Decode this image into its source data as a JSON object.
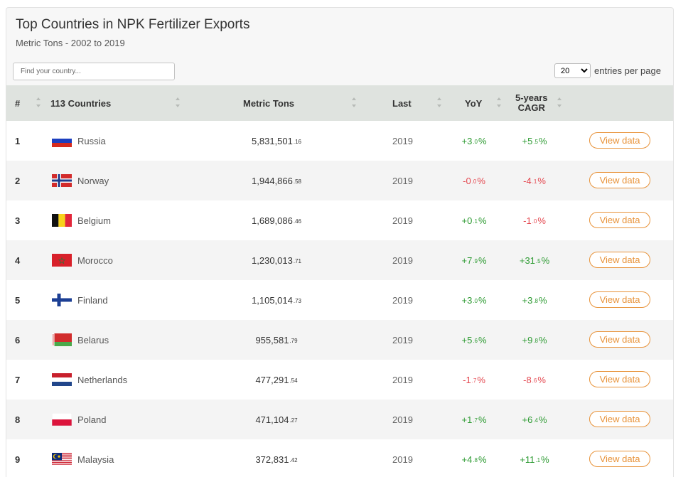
{
  "header": {
    "title": "Top Countries in NPK Fertilizer Exports",
    "subtitle": "Metric Tons - 2002 to 2019"
  },
  "search": {
    "placeholder": "Find your country..."
  },
  "pagination": {
    "per_page_value": "20",
    "per_page_label": "entries per page"
  },
  "table": {
    "columns": {
      "rank": "#",
      "country": "113 Countries",
      "value": "Metric Tons",
      "last": "Last",
      "yoy": "YoY",
      "cagr_line1": "5-years",
      "cagr_line2": "CAGR"
    },
    "button_label": "View data",
    "rows": [
      {
        "rank": "1",
        "country": "Russia",
        "flag": "russia-flag",
        "value_int": "5,831,501",
        "value_dec": ".16",
        "last": "2019",
        "yoy_sign": "+",
        "yoy_int": "3",
        "yoy_dec": ".0",
        "yoy_dir": "pos",
        "cagr_sign": "+",
        "cagr_int": "5",
        "cagr_dec": ".5",
        "cagr_dir": "pos"
      },
      {
        "rank": "2",
        "country": "Norway",
        "flag": "norway-flag",
        "value_int": "1,944,866",
        "value_dec": ".58",
        "last": "2019",
        "yoy_sign": "-",
        "yoy_int": "0",
        "yoy_dec": ".0",
        "yoy_dir": "neg",
        "cagr_sign": "-",
        "cagr_int": "4",
        "cagr_dec": ".1",
        "cagr_dir": "neg"
      },
      {
        "rank": "3",
        "country": "Belgium",
        "flag": "belgium-flag",
        "value_int": "1,689,086",
        "value_dec": ".46",
        "last": "2019",
        "yoy_sign": "+",
        "yoy_int": "0",
        "yoy_dec": ".1",
        "yoy_dir": "pos",
        "cagr_sign": "-",
        "cagr_int": "1",
        "cagr_dec": ".0",
        "cagr_dir": "neg"
      },
      {
        "rank": "4",
        "country": "Morocco",
        "flag": "morocco-flag",
        "value_int": "1,230,013",
        "value_dec": ".71",
        "last": "2019",
        "yoy_sign": "+",
        "yoy_int": "7",
        "yoy_dec": ".9",
        "yoy_dir": "pos",
        "cagr_sign": "+",
        "cagr_int": "31",
        "cagr_dec": ".5",
        "cagr_dir": "pos"
      },
      {
        "rank": "5",
        "country": "Finland",
        "flag": "finland-flag",
        "value_int": "1,105,014",
        "value_dec": ".73",
        "last": "2019",
        "yoy_sign": "+",
        "yoy_int": "3",
        "yoy_dec": ".0",
        "yoy_dir": "pos",
        "cagr_sign": "+",
        "cagr_int": "3",
        "cagr_dec": ".8",
        "cagr_dir": "pos"
      },
      {
        "rank": "6",
        "country": "Belarus",
        "flag": "belarus-flag",
        "value_int": "955,581",
        "value_dec": ".79",
        "last": "2019",
        "yoy_sign": "+",
        "yoy_int": "5",
        "yoy_dec": ".6",
        "yoy_dir": "pos",
        "cagr_sign": "+",
        "cagr_int": "9",
        "cagr_dec": ".8",
        "cagr_dir": "pos"
      },
      {
        "rank": "7",
        "country": "Netherlands",
        "flag": "netherlands-flag",
        "value_int": "477,291",
        "value_dec": ".54",
        "last": "2019",
        "yoy_sign": "-",
        "yoy_int": "1",
        "yoy_dec": ".7",
        "yoy_dir": "neg",
        "cagr_sign": "-",
        "cagr_int": "8",
        "cagr_dec": ".6",
        "cagr_dir": "neg"
      },
      {
        "rank": "8",
        "country": "Poland",
        "flag": "poland-flag",
        "value_int": "471,104",
        "value_dec": ".27",
        "last": "2019",
        "yoy_sign": "+",
        "yoy_int": "1",
        "yoy_dec": ".7",
        "yoy_dir": "pos",
        "cagr_sign": "+",
        "cagr_int": "6",
        "cagr_dec": ".4",
        "cagr_dir": "pos"
      },
      {
        "rank": "9",
        "country": "Malaysia",
        "flag": "malaysia-flag",
        "value_int": "372,831",
        "value_dec": ".42",
        "last": "2019",
        "yoy_sign": "+",
        "yoy_int": "4",
        "yoy_dec": ".8",
        "yoy_dir": "pos",
        "cagr_sign": "+",
        "cagr_int": "11",
        "cagr_dec": ".1",
        "cagr_dir": "pos"
      }
    ]
  },
  "colors": {
    "positive": "#2e9b33",
    "negative": "#e4474f",
    "accent": "#e8933a",
    "header_bg": "#dfe3df"
  }
}
